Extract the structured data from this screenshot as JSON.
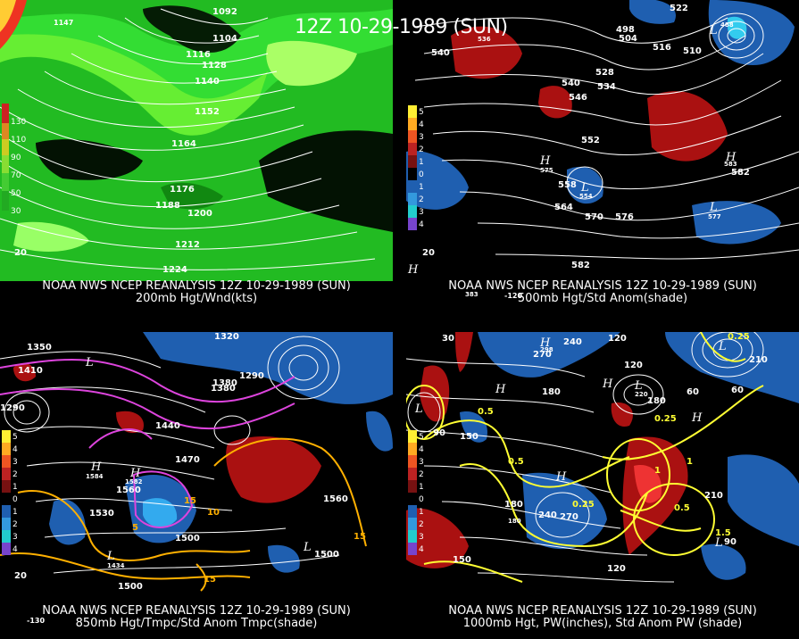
{
  "header": {
    "title": "12Z 10-29-1989 (SUN)"
  },
  "panels": {
    "top_left": {
      "source": "NOAA NWS NCEP REANALYSIS 12Z 10-29-1989 (SUN)",
      "field": "200mb Hgt/Wnd(kts)",
      "legend": [
        "130",
        "110",
        "90",
        "70",
        "50",
        "30"
      ],
      "contour_labels": [
        "1092",
        "1104",
        "1116",
        "1128",
        "1140",
        "1152",
        "1164",
        "1176",
        "1188",
        "1200",
        "1212",
        "1224"
      ],
      "extra_labels": [
        "20",
        "1147"
      ]
    },
    "top_right": {
      "source": "NOAA NWS NCEP REANALYSIS 12Z 10-29-1989 (SUN)",
      "field": "500mb Hgt/Std Anom(shade)",
      "legend": [
        "5",
        "4",
        "3",
        "2",
        "1",
        "0",
        "1",
        "2",
        "3",
        "4",
        "5"
      ],
      "contour_labels": [
        "522",
        "498",
        "504",
        "510",
        "516",
        "540",
        "528",
        "534",
        "540",
        "546",
        "552",
        "558",
        "564",
        "570",
        "576",
        "582",
        "582",
        "536"
      ],
      "highs": [
        "H",
        "H",
        "H"
      ],
      "lows": [
        "L",
        "L",
        "L"
      ],
      "extra_labels": [
        "20",
        "-120",
        "575",
        "583",
        "554",
        "577",
        "488",
        "383"
      ]
    },
    "bottom_left": {
      "source": "NOAA NWS NCEP REANALYSIS 12Z 10-29-1989 (SUN)",
      "field": "850mb Hgt/Tmpc/Std Anom Tmpc(shade)",
      "legend": [
        "5",
        "4",
        "3",
        "2",
        "1",
        "0",
        "1",
        "2",
        "3",
        "4",
        "5"
      ],
      "contour_labels": [
        "1350",
        "1410",
        "1290",
        "1380",
        "1320",
        "1290",
        "1440",
        "1470",
        "1500",
        "1530",
        "1560",
        "1560",
        "1500",
        "1500",
        "1380"
      ],
      "temp_labels": [
        "10",
        "15",
        "15",
        "15",
        "5"
      ],
      "highs": [
        "H",
        "H"
      ],
      "lows": [
        "L",
        "L",
        "L"
      ],
      "extra_labels": [
        "20",
        "-130",
        "1584",
        "1582",
        "1434"
      ]
    },
    "bottom_right": {
      "source": "NOAA NWS NCEP REANALYSIS 12Z 10-29-1989 (SUN)",
      "field": "1000mb Hgt, PW(inches), Std Anom PW (shade)",
      "legend": [
        "5",
        "4",
        "3",
        "2",
        "1",
        "0",
        "1",
        "2",
        "3",
        "4",
        "5"
      ],
      "contour_labels": [
        "30",
        "240",
        "120",
        "270",
        "180",
        "60",
        "120",
        "150",
        "180",
        "210",
        "240",
        "270",
        "150",
        "90",
        "60",
        "210",
        "180",
        "120",
        "90"
      ],
      "pw_labels": [
        "0.25",
        "0.5",
        "0.5",
        "0.25",
        "0.5",
        "1",
        "1",
        "1.5",
        "0.25"
      ],
      "highs": [
        "H",
        "H",
        "H",
        "H",
        "H"
      ],
      "lows": [
        "L",
        "L",
        "L",
        "L"
      ],
      "extra_labels": [
        "298",
        "220",
        "180"
      ]
    }
  },
  "colors": {
    "green_light": "#22bb22",
    "green_mid": "#33cc33",
    "green_bright": "#66ff33",
    "green_dark": "#118811",
    "green_pale": "#99ff66",
    "anom_red": "#aa1111",
    "anom_blue": "#1f5fb0",
    "magenta": "#dd44dd",
    "orange": "#ffb000",
    "yellow": "#ffff33"
  }
}
